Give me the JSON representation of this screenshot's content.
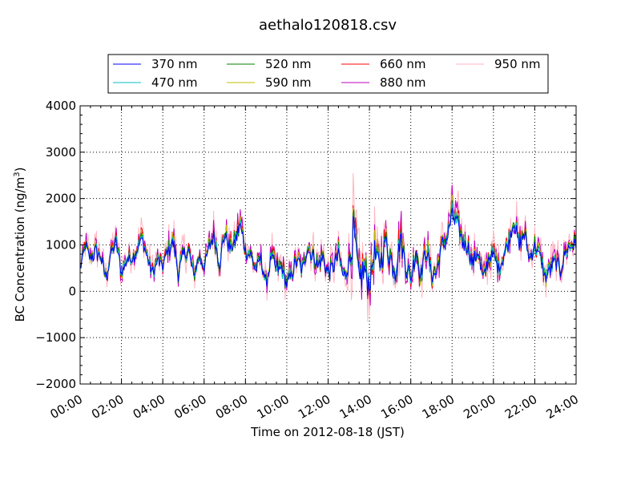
{
  "chart_data": {
    "type": "line",
    "title": "aethalo120818.csv",
    "xlabel": "Time on 2012-08-18 (JST)",
    "ylabel": "BC Concentration (ng/m",
    "ylabel_sup": "3",
    "ylabel_close": ")",
    "xlim": [
      "00:00",
      "24:00"
    ],
    "ylim": [
      -2000,
      4000
    ],
    "x_ticks": [
      "00:00",
      "02:00",
      "04:00",
      "06:00",
      "08:00",
      "10:00",
      "12:00",
      "14:00",
      "16:00",
      "18:00",
      "20:00",
      "22:00",
      "24:00"
    ],
    "y_ticks": [
      "−2000",
      "−1000",
      "0",
      "1000",
      "2000",
      "3000",
      "4000"
    ],
    "grid": true,
    "legend_position": "top",
    "series": [
      {
        "name": "370 nm",
        "color": "#0000ff"
      },
      {
        "name": "470 nm",
        "color": "#00bfbf"
      },
      {
        "name": "520 nm",
        "color": "#008000"
      },
      {
        "name": "590 nm",
        "color": "#bfbf00"
      },
      {
        "name": "660 nm",
        "color": "#ff0000"
      },
      {
        "name": "880 nm",
        "color": "#bf00bf"
      },
      {
        "name": "950 nm",
        "color": "#ffb6c1"
      }
    ],
    "x_hours": [
      0,
      0.25,
      0.5,
      0.75,
      1,
      1.25,
      1.5,
      1.75,
      2,
      2.25,
      2.5,
      2.75,
      3,
      3.25,
      3.5,
      3.75,
      4,
      4.25,
      4.5,
      4.75,
      5,
      5.25,
      5.5,
      5.75,
      6,
      6.25,
      6.5,
      6.75,
      7,
      7.25,
      7.5,
      7.75,
      8,
      8.25,
      8.5,
      8.75,
      9,
      9.25,
      9.5,
      9.75,
      10,
      10.25,
      10.5,
      10.75,
      11,
      11.25,
      11.5,
      11.75,
      12,
      12.25,
      12.5,
      12.75,
      13,
      13.25,
      13.5,
      13.75,
      14,
      14.25,
      14.5,
      14.75,
      15,
      15.25,
      15.5,
      15.75,
      16,
      16.25,
      16.5,
      16.75,
      17,
      17.25,
      17.5,
      17.75,
      18,
      18.25,
      18.5,
      18.75,
      19,
      19.25,
      19.5,
      19.75,
      20,
      20.25,
      20.5,
      20.75,
      21,
      21.25,
      21.5,
      21.75,
      22,
      22.25,
      22.5,
      22.75,
      23,
      23.25,
      23.5,
      23.75,
      24
    ],
    "base_values": [
      500,
      1000,
      700,
      900,
      750,
      300,
      850,
      1100,
      400,
      700,
      750,
      900,
      1200,
      750,
      400,
      700,
      550,
      900,
      1100,
      450,
      800,
      900,
      350,
      750,
      550,
      1000,
      1200,
      600,
      1300,
      950,
      1100,
      1500,
      900,
      800,
      500,
      700,
      150,
      800,
      450,
      550,
      150,
      400,
      700,
      450,
      1000,
      800,
      600,
      750,
      400,
      550,
      800,
      350,
      600,
      1300,
      200,
      500,
      150,
      900,
      600,
      1100,
      800,
      450,
      1200,
      600,
      300,
      900,
      350,
      1000,
      350,
      450,
      1000,
      1200,
      1700,
      1500,
      1100,
      1000,
      600,
      900,
      250,
      700,
      850,
      500,
      800,
      1100,
      1600,
      1000,
      1300,
      700,
      1000,
      800,
      300,
      500,
      700,
      450,
      900,
      1000,
      1050
    ],
    "spread": [
      150,
      300,
      250,
      300,
      250,
      300,
      250,
      350,
      300,
      250,
      250,
      300,
      300,
      250,
      300,
      250,
      250,
      300,
      350,
      400,
      300,
      300,
      300,
      250,
      250,
      300,
      400,
      300,
      400,
      300,
      350,
      400,
      300,
      300,
      350,
      300,
      300,
      300,
      400,
      350,
      350,
      300,
      350,
      350,
      300,
      350,
      400,
      350,
      350,
      350,
      400,
      300,
      500,
      900,
      700,
      600,
      600,
      600,
      500,
      600,
      500,
      500,
      600,
      500,
      400,
      500,
      400,
      500,
      400,
      400,
      400,
      400,
      500,
      450,
      350,
      350,
      350,
      350,
      350,
      350,
      350,
      350,
      350,
      350,
      400,
      350,
      350,
      300,
      350,
      300,
      400,
      350,
      300,
      300,
      350,
      300,
      300
    ]
  }
}
